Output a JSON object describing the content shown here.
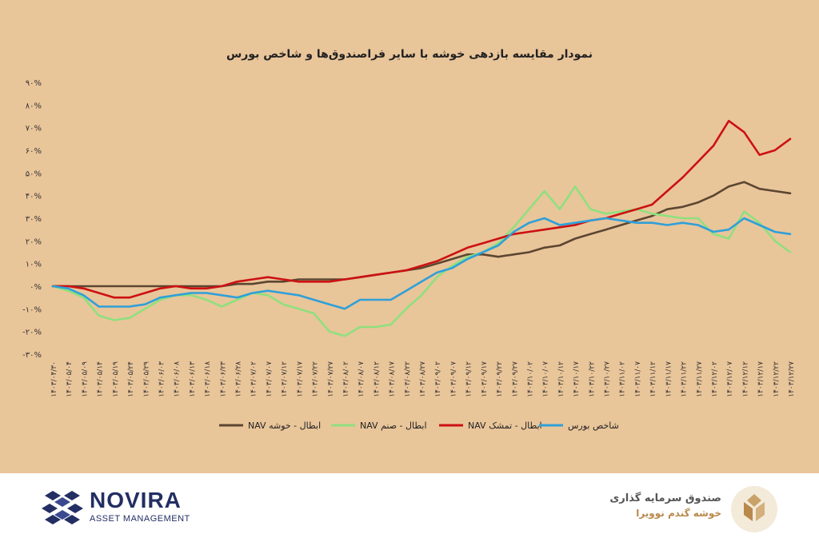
{
  "chart_data": {
    "type": "line",
    "title": "نمودار مقایسه بازدهی خوشه با سایر فراصندوق‌ها و شاخص بورس",
    "xlabel": "",
    "ylabel": "",
    "ylim": [
      -30,
      90
    ],
    "yticks": [
      -30,
      -20,
      -10,
      0,
      10,
      20,
      30,
      40,
      50,
      60,
      70,
      80,
      90
    ],
    "ytick_labels": [
      "-۳۰%",
      "-۲۰%",
      "-۱۰%",
      "۰%",
      "۱۰%",
      "۲۰%",
      "۳۰%",
      "۴۰%",
      "۵۰%",
      "۶۰%",
      "۷۰%",
      "۸۰%",
      "۹۰%"
    ],
    "x": [
      0,
      5,
      10,
      15,
      20,
      25,
      30,
      35,
      40,
      45,
      50,
      55,
      60,
      65,
      70,
      75,
      80,
      85,
      90,
      95,
      100,
      105,
      110,
      115,
      120,
      125,
      130,
      135,
      140,
      145,
      150,
      155,
      160,
      165,
      170,
      175,
      180,
      185,
      190,
      195,
      200,
      205,
      210,
      215,
      220,
      225,
      230,
      235,
      240
    ],
    "x_tick_labels": [
      "۱۴۰۳/۰۴/۳۰",
      "۱۴۰۳/۰۵/۰۴",
      "۱۴۰۳/۰۵/۰۹",
      "۱۴۰۳/۰۵/۱۴",
      "۱۴۰۳/۰۵/۱۹",
      "۱۴۰۳/۰۵/۲۴",
      "۱۴۰۳/۰۵/۲۹",
      "۱۴۰۳/۰۶/۰۳",
      "۱۴۰۳/۰۶/۰۸",
      "۱۴۰۳/۰۶/۱۳",
      "۱۴۰۳/۰۶/۱۸",
      "۱۴۰۳/۰۶/۲۳",
      "۱۴۰۳/۰۶/۲۸",
      "۱۴۰۳/۰۷/۰۲",
      "۱۴۰۳/۰۷/۰۷",
      "۱۴۰۳/۰۷/۱۲",
      "۱۴۰۳/۰۷/۱۷",
      "۱۴۰۳/۰۷/۲۲",
      "۱۴۰۳/۰۷/۲۷",
      "۱۴۰۳/۰۸/۰۲",
      "۱۴۰۳/۰۸/۰۷",
      "۱۴۰۳/۰۸/۱۲",
      "۱۴۰۳/۰۸/۱۷",
      "۱۴۰۳/۰۸/۲۲",
      "۱۴۰۳/۰۸/۲۷",
      "۱۴۰۳/۰۹/۰۲",
      "۱۴۰۳/۰۹/۰۷",
      "۱۴۰۳/۰۹/۱۲",
      "۱۴۰۳/۰۹/۱۷",
      "۱۴۰۳/۰۹/۲۲",
      "۱۴۰۳/۰۹/۲۷",
      "۱۴۰۳/۱۰/۰۲",
      "۱۴۰۳/۱۰/۰۷",
      "۱۴۰۳/۱۰/۱۲",
      "۱۴۰۳/۱۰/۱۷",
      "۱۴۰۳/۱۰/۲۲",
      "۱۴۰۳/۱۰/۲۷",
      "۱۴۰۳/۱۱/۰۲",
      "۱۴۰۳/۱۱/۰۷",
      "۱۴۰۳/۱۱/۱۲",
      "۱۴۰۳/۱۱/۱۷",
      "۱۴۰۳/۱۱/۲۲",
      "۱۴۰۳/۱۱/۲۷",
      "۱۴۰۳/۱۲/۰۲",
      "۱۴۰۳/۱۲/۰۷",
      "۱۴۰۳/۱۲/۱۲",
      "۱۴۰۳/۱۲/۱۷",
      "۱۴۰۳/۱۲/۲۲",
      "۱۴۰۳/۱۲/۲۷"
    ],
    "series": [
      {
        "name": "NAV ابطال - خوشه",
        "color": "#5c4631",
        "values": [
          0,
          0,
          0,
          0,
          0,
          0,
          0,
          0,
          0,
          0,
          0,
          0,
          1,
          1,
          2,
          2,
          3,
          3,
          3,
          3,
          4,
          5,
          6,
          7,
          8,
          10,
          12,
          14,
          14,
          13,
          14,
          15,
          17,
          18,
          21,
          23,
          25,
          27,
          29,
          31,
          34,
          35,
          37,
          40,
          44,
          46,
          43,
          42,
          41
        ]
      },
      {
        "name": "NAV ابطال - صنم",
        "color": "#8fe07e",
        "values": [
          0,
          -2,
          -5,
          -13,
          -15,
          -14,
          -10,
          -6,
          -4,
          -4,
          -6,
          -9,
          -6,
          -3,
          -4,
          -8,
          -10,
          -12,
          -20,
          -22,
          -18,
          -18,
          -17,
          -10,
          -4,
          4,
          9,
          13,
          15,
          19,
          26,
          34,
          42,
          34,
          44,
          34,
          32,
          33,
          34,
          32,
          31,
          30,
          30,
          23,
          21,
          33,
          28,
          20,
          15
        ]
      },
      {
        "name": "NAV ابطال - تمشک",
        "color": "#cc1111",
        "values": [
          0,
          0,
          -1,
          -3,
          -5,
          -5,
          -3,
          -1,
          0,
          -1,
          -1,
          0,
          2,
          3,
          4,
          3,
          2,
          2,
          2,
          3,
          4,
          5,
          6,
          7,
          9,
          11,
          14,
          17,
          19,
          21,
          23,
          24,
          25,
          26,
          27,
          29,
          30,
          32,
          34,
          36,
          42,
          48,
          55,
          62,
          73,
          68,
          58,
          60,
          65
        ]
      },
      {
        "name": "شاخص بورس",
        "color": "#2fa0d8",
        "values": [
          0,
          -1,
          -4,
          -9,
          -9,
          -9,
          -8,
          -5,
          -4,
          -3,
          -3,
          -4,
          -5,
          -3,
          -2,
          -3,
          -4,
          -6,
          -8,
          -10,
          -6,
          -6,
          -6,
          -2,
          2,
          6,
          8,
          12,
          15,
          18,
          24,
          28,
          30,
          27,
          28,
          29,
          30,
          29,
          28,
          28,
          27,
          28,
          27,
          24,
          25,
          30,
          27,
          24,
          23
        ]
      }
    ],
    "grid": false,
    "legend_position": "bottom"
  },
  "footer": {
    "fund_line1": "صندوق سرمایه گذاری",
    "fund_line2": "خوشه گندم نوویرا",
    "company_name": "NOVIRA",
    "company_sub": "ASSET MANAGEMENT",
    "fund_logo_icon": "wheat-sheaf-icon",
    "company_logo_icon": "novira-cube-icon"
  }
}
